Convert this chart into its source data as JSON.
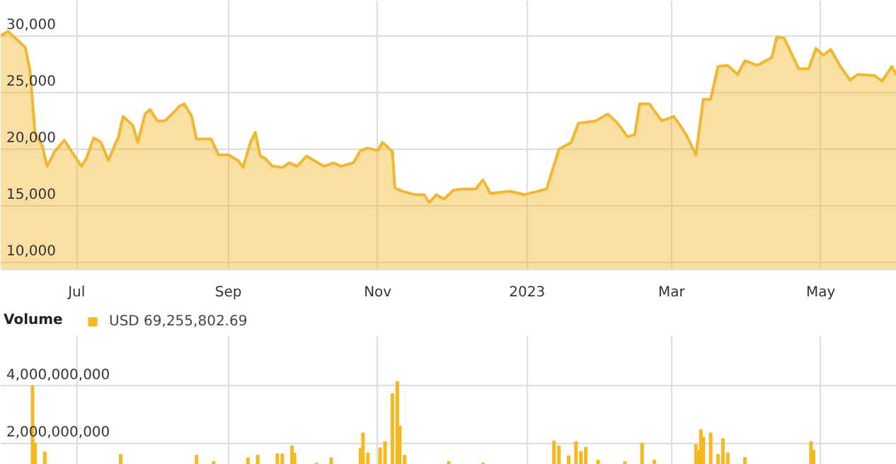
{
  "chart_data": [
    {
      "type": "area",
      "xlim": [
        "2022-05-31",
        "2023-06-01"
      ],
      "ylim": [
        9400,
        33100
      ],
      "xticks": [
        {
          "value": "2022-07-01",
          "label": "Jul"
        },
        {
          "value": "2022-09-01",
          "label": "Sep"
        },
        {
          "value": "2022-11-01",
          "label": "Nov"
        },
        {
          "value": "2023-01-01",
          "label": "2023"
        },
        {
          "value": "2023-03-01",
          "label": "Mar"
        },
        {
          "value": "2023-05-01",
          "label": "May"
        }
      ],
      "yticks": [
        {
          "value": 10000,
          "label": "10,000"
        },
        {
          "value": 15000,
          "label": "15,000"
        },
        {
          "value": 20000,
          "label": "20,000"
        },
        {
          "value": 25000,
          "label": "25,000"
        },
        {
          "value": 30000,
          "label": "30,000"
        }
      ],
      "grid": true,
      "x": [
        "2022-05-31",
        "2022-06-03",
        "2022-06-10",
        "2022-06-12",
        "2022-06-14",
        "2022-06-17",
        "2022-06-19",
        "2022-06-22",
        "2022-06-26",
        "2022-06-29",
        "2022-07-03",
        "2022-07-05",
        "2022-07-08",
        "2022-07-11",
        "2022-07-14",
        "2022-07-17",
        "2022-07-18",
        "2022-07-20",
        "2022-07-22",
        "2022-07-24",
        "2022-07-26",
        "2022-07-29",
        "2022-07-31",
        "2022-08-03",
        "2022-08-06",
        "2022-08-09",
        "2022-08-12",
        "2022-08-14",
        "2022-08-17",
        "2022-08-19",
        "2022-08-23",
        "2022-08-25",
        "2022-08-28",
        "2022-09-01",
        "2022-09-05",
        "2022-09-07",
        "2022-09-10",
        "2022-09-12",
        "2022-09-14",
        "2022-09-16",
        "2022-09-19",
        "2022-09-23",
        "2022-09-26",
        "2022-09-29",
        "2022-10-03",
        "2022-10-06",
        "2022-10-10",
        "2022-10-14",
        "2022-10-17",
        "2022-10-22",
        "2022-10-25",
        "2022-10-28",
        "2022-11-01",
        "2022-11-03",
        "2022-11-07",
        "2022-11-08",
        "2022-11-11",
        "2022-11-16",
        "2022-11-20",
        "2022-11-22",
        "2022-11-25",
        "2022-11-28",
        "2022-12-02",
        "2022-12-06",
        "2022-12-11",
        "2022-12-14",
        "2022-12-17",
        "2022-12-25",
        "2022-12-31",
        "2023-01-09",
        "2023-01-14",
        "2023-01-19",
        "2023-01-22",
        "2023-01-29",
        "2023-02-03",
        "2023-02-07",
        "2023-02-11",
        "2023-02-14",
        "2023-02-16",
        "2023-02-20",
        "2023-02-25",
        "2023-03-02",
        "2023-03-07",
        "2023-03-11",
        "2023-03-14",
        "2023-03-17",
        "2023-03-20",
        "2023-03-24",
        "2023-03-28",
        "2023-03-31",
        "2023-04-05",
        "2023-04-11",
        "2023-04-13",
        "2023-04-16",
        "2023-04-22",
        "2023-04-26",
        "2023-04-29",
        "2023-05-02",
        "2023-05-05",
        "2023-05-09",
        "2023-05-13",
        "2023-05-16",
        "2023-05-23",
        "2023-05-26",
        "2023-05-30",
        "2023-06-01"
      ],
      "series": [
        {
          "color": "#f2b731",
          "values": [
            30000,
            30400,
            29000,
            26900,
            21500,
            20300,
            18500,
            19800,
            20800,
            19800,
            18500,
            19200,
            21000,
            20600,
            19000,
            20600,
            21000,
            22900,
            22500,
            22100,
            20600,
            23100,
            23500,
            22500,
            22500,
            23100,
            23800,
            24000,
            22900,
            20900,
            20900,
            20900,
            19500,
            19500,
            19000,
            18400,
            20600,
            21500,
            19400,
            19200,
            18500,
            18400,
            18800,
            18500,
            19400,
            19000,
            18500,
            18800,
            18500,
            18800,
            19900,
            20100,
            19900,
            20600,
            19800,
            16600,
            16300,
            16000,
            16000,
            15300,
            16000,
            15600,
            16400,
            16500,
            16500,
            17300,
            16100,
            16300,
            16000,
            16500,
            20000,
            20600,
            22300,
            22500,
            23100,
            22300,
            21100,
            21300,
            24000,
            24000,
            22500,
            22900,
            21300,
            19500,
            24400,
            24400,
            27300,
            27400,
            26600,
            27800,
            27400,
            28100,
            29900,
            29800,
            27100,
            27100,
            28900,
            28300,
            28800,
            27300,
            26100,
            26600,
            26500,
            26000,
            27300,
            26500
          ]
        }
      ]
    },
    {
      "type": "bar",
      "legend_title": "Volume",
      "legend": "top",
      "tick_labels": "y",
      "grid": true,
      "xlim": [
        "2022-05-31",
        "2023-06-01"
      ],
      "ylim": [
        1250000000,
        5750000000
      ],
      "xticks": [
        {
          "value": "2022-07-01",
          "label": null
        },
        {
          "value": "2022-09-01",
          "label": null
        },
        {
          "value": "2022-11-01",
          "label": null
        },
        {
          "value": "2023-01-01",
          "label": null
        },
        {
          "value": "2023-03-01",
          "label": null
        },
        {
          "value": "2023-05-01",
          "label": null
        }
      ],
      "yticks": [
        {
          "value": 2000000000,
          "label": "2,000,000,000"
        },
        {
          "value": 4000000000,
          "label": "4,000,000,000"
        }
      ],
      "x": [
        "2022-06-13",
        "2022-06-14",
        "2022-06-18",
        "2022-07-19",
        "2022-08-19",
        "2022-08-26",
        "2022-09-09",
        "2022-09-13",
        "2022-09-21",
        "2022-09-23",
        "2022-09-27",
        "2022-09-28",
        "2022-10-07",
        "2022-10-13",
        "2022-10-25",
        "2022-10-26",
        "2022-10-28",
        "2022-11-02",
        "2022-11-04",
        "2022-11-07",
        "2022-11-09",
        "2022-11-10",
        "2022-11-12",
        "2022-11-30",
        "2022-12-14",
        "2023-01-12",
        "2023-01-14",
        "2023-01-18",
        "2023-01-21",
        "2023-01-23",
        "2023-01-25",
        "2023-01-30",
        "2023-02-10",
        "2023-02-17",
        "2023-02-22",
        "2023-03-11",
        "2023-03-12",
        "2023-03-13",
        "2023-03-14",
        "2023-03-17",
        "2023-03-20",
        "2023-03-22",
        "2023-03-24",
        "2023-03-31",
        "2023-04-27",
        "2023-04-28"
      ],
      "series": [
        {
          "name": "USD 69,255,802.69",
          "color": "#f5b921",
          "values": [
            4000000000,
            2000000000,
            1680000000,
            1600000000,
            1570000000,
            1350000000,
            1480000000,
            1570000000,
            1620000000,
            1620000000,
            1900000000,
            1650000000,
            1300000000,
            1480000000,
            1820000000,
            2350000000,
            1650000000,
            1830000000,
            2050000000,
            3730000000,
            4150000000,
            2600000000,
            1570000000,
            1350000000,
            1300000000,
            2070000000,
            1900000000,
            1550000000,
            2050000000,
            1700000000,
            1850000000,
            1400000000,
            1350000000,
            2000000000,
            1400000000,
            1950000000,
            1750000000,
            2470000000,
            2200000000,
            2350000000,
            1600000000,
            2150000000,
            1650000000,
            1500000000,
            2050000000,
            1750000000
          ]
        }
      ]
    }
  ]
}
